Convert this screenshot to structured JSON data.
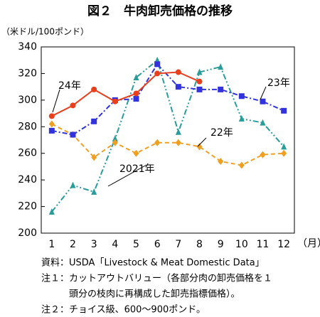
{
  "chart_data": {
    "type": "line",
    "title": "図２　牛肉卸売価格の推移",
    "y_label": "（米ドル/100ポンド）",
    "x_label": "（月）",
    "categories": [
      "1",
      "2",
      "3",
      "4",
      "5",
      "6",
      "7",
      "8",
      "9",
      "10",
      "11",
      "12"
    ],
    "series": [
      {
        "name": "2021年",
        "color": "#2a9d9a",
        "marker": "triangle",
        "line_style": "dashdotdot",
        "values": [
          216,
          236,
          231,
          271,
          317,
          330,
          276,
          321,
          325,
          286,
          283,
          265
        ]
      },
      {
        "name": "22年",
        "color": "#f0a020",
        "marker": "diamond",
        "line_style": "dashed",
        "values": [
          282,
          274,
          257,
          268,
          260,
          268,
          268,
          265,
          254,
          251,
          259,
          260
        ]
      },
      {
        "name": "23年",
        "color": "#3333dd",
        "marker": "square",
        "line_style": "dashdot",
        "values": [
          277,
          274,
          284,
          300,
          301,
          327,
          310,
          308,
          308,
          303,
          299,
          292
        ]
      },
      {
        "name": "24年",
        "color": "#e8401c",
        "marker": "circle",
        "line_style": "solid",
        "values": [
          288,
          296,
          308,
          299,
          305,
          320,
          321,
          314,
          null,
          null,
          null,
          null
        ]
      }
    ],
    "ylim": [
      200,
      340
    ],
    "yticks": [
      200,
      220,
      240,
      260,
      280,
      300,
      320,
      340
    ],
    "grid": false,
    "notes": [
      "資料：USDA「Livestock & Meat Domestic Data」",
      "注１：カットアウトバリュー（各部分肉の卸売価格を１",
      "　　　頭分の枝肉に再構成した卸売指標価格）。",
      "注２：チョイス級、600～900ポンド。"
    ]
  }
}
